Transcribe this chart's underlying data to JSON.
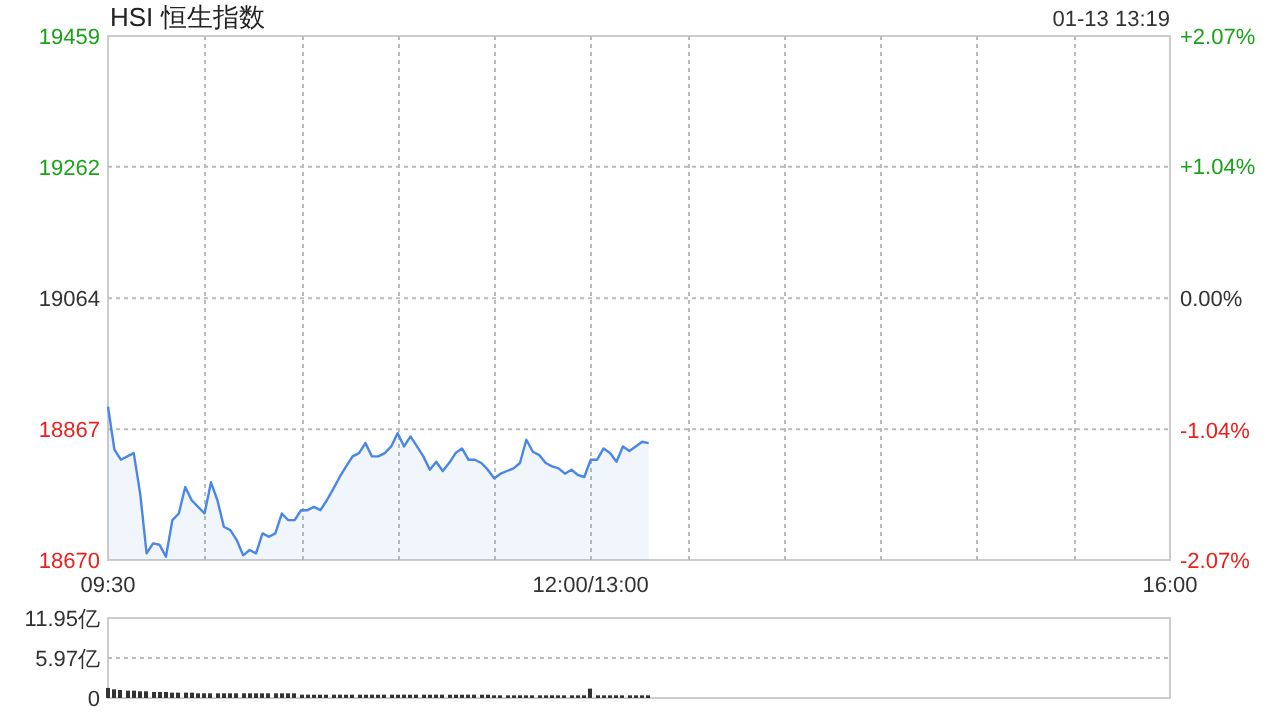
{
  "chart_data": [
    {
      "type": "area",
      "title": "HSI 恒生指数",
      "subtitle": "01-13 13:19",
      "color": "#4a86e8",
      "grid": true,
      "categories": [
        "09:30",
        null,
        null,
        null,
        null,
        null,
        null,
        null,
        null,
        null,
        null,
        null,
        null,
        null,
        null,
        null,
        null,
        null,
        null,
        null,
        null,
        null,
        null,
        null,
        null,
        null,
        null,
        null,
        null,
        null,
        null,
        null,
        null,
        null,
        null,
        null,
        null,
        null,
        null,
        null,
        null,
        null,
        null,
        null,
        null,
        null,
        null,
        null,
        null,
        null,
        null,
        null,
        null,
        null,
        null,
        null,
        null,
        null,
        null,
        null,
        null,
        null,
        null,
        null,
        null,
        null,
        null,
        null,
        null,
        null,
        null,
        null,
        null,
        null,
        null,
        "12:00/13:00",
        null,
        null,
        null,
        null,
        null,
        null,
        null,
        null,
        null,
        null,
        null,
        null,
        null,
        null,
        null,
        null,
        null,
        null,
        null,
        null,
        null,
        null,
        null,
        null,
        null,
        null,
        null,
        null,
        null,
        null,
        null,
        null,
        null,
        null,
        null,
        null,
        null,
        null,
        null,
        null,
        null,
        null,
        null,
        null,
        null,
        null,
        null,
        null,
        null,
        null,
        null,
        null,
        null,
        null,
        null,
        null,
        null,
        null,
        null,
        null,
        null,
        null,
        null,
        null,
        null,
        null,
        null,
        null,
        null,
        null,
        null,
        null,
        null,
        null,
        null,
        null,
        null,
        null,
        null,
        null,
        null,
        null,
        null,
        null,
        null,
        null,
        null,
        null,
        null,
        "16:00"
      ],
      "values": [
        18901,
        18836,
        18821,
        18826,
        18831,
        18770,
        18680,
        18695,
        18693,
        18675,
        18730,
        18740,
        18780,
        18760,
        18750,
        18740,
        18787,
        18760,
        18720,
        18715,
        18700,
        18677,
        18685,
        18680,
        18710,
        18705,
        18710,
        18740,
        18730,
        18730,
        18745,
        18745,
        18750,
        18745,
        18760,
        18777,
        18795,
        18811,
        18826,
        18831,
        18846,
        18826,
        18826,
        18831,
        18841,
        18861,
        18841,
        18856,
        18841,
        18826,
        18806,
        18818,
        18804,
        18816,
        18831,
        18838,
        18821,
        18821,
        18816,
        18806,
        18793,
        18800,
        18804,
        18808,
        18816,
        18851,
        18833,
        18828,
        18816,
        18811,
        18808,
        18800,
        18806,
        18798,
        18795,
        18821,
        18821,
        18838,
        18831,
        18818,
        18841,
        18834,
        18841,
        18848,
        18846,
        null,
        null,
        null,
        null,
        null,
        null,
        null,
        null,
        null,
        null,
        null,
        null,
        null,
        null,
        null,
        null,
        null,
        null,
        null,
        null,
        null,
        null,
        null,
        null,
        null,
        null,
        null,
        null,
        null,
        null,
        null,
        null,
        null,
        null,
        null,
        null,
        null,
        null,
        null,
        null,
        null,
        null,
        null,
        null,
        null,
        null,
        null,
        null,
        null,
        null,
        null,
        null,
        null,
        null,
        null,
        null,
        null,
        null,
        null,
        null,
        null,
        null,
        null,
        null,
        null,
        null,
        null,
        null,
        null,
        null,
        null,
        null,
        null,
        null,
        null,
        null,
        null,
        null,
        null,
        null,
        null
      ],
      "ylim": [
        18670,
        19459
      ],
      "yticks": [
        18670,
        18867,
        19064,
        19262,
        19459
      ],
      "y2lim": [
        -2.07,
        2.07
      ],
      "y2ticks": [
        {
          "value": -2.07,
          "label": "-2.07%"
        },
        {
          "value": -1.04,
          "label": "-1.04%"
        },
        {
          "value": 0,
          "label": "0.00%"
        },
        {
          "value": 1.04,
          "label": "+1.04%"
        },
        {
          "value": 2.07,
          "label": "+2.07%"
        }
      ]
    },
    {
      "type": "bar",
      "color": "#333333",
      "grid": "y",
      "tick_labels": "y",
      "categories": [
        null,
        null,
        null,
        null,
        null,
        null,
        null,
        null,
        null,
        null,
        null,
        null,
        null,
        null,
        null,
        null,
        null,
        null,
        null,
        null,
        null,
        null,
        null,
        null,
        null,
        null,
        null,
        null,
        null,
        null,
        null,
        null,
        null,
        null,
        null,
        null,
        null,
        null,
        null,
        null,
        null,
        null,
        null,
        null,
        null,
        null,
        null,
        null,
        null,
        null,
        null,
        null,
        null,
        null,
        null,
        null,
        null,
        null,
        null,
        null,
        null,
        null,
        null,
        null,
        null,
        null,
        null,
        null,
        null,
        null,
        null,
        null,
        null,
        null,
        null,
        null,
        null,
        null,
        null,
        null,
        null,
        null,
        null,
        null,
        null,
        null,
        null,
        null,
        null,
        null,
        null,
        null,
        null,
        null,
        null,
        null,
        null,
        null,
        null,
        null,
        null,
        null,
        null,
        null,
        null,
        null,
        null,
        null,
        null,
        null,
        null,
        null,
        null,
        null,
        null,
        null,
        null,
        null,
        null,
        null,
        null,
        null,
        null,
        null,
        null,
        null,
        null,
        null,
        null,
        null,
        null,
        null,
        null,
        null,
        null,
        null,
        null,
        null,
        null,
        null,
        null,
        null,
        null,
        null,
        null,
        null,
        null,
        null,
        null,
        null,
        null,
        null,
        null,
        null,
        null,
        null,
        null,
        null,
        null,
        null,
        null,
        null,
        null,
        null,
        null,
        null
      ],
      "values": [
        1.5,
        1.3,
        1.2,
        1.1,
        1.1,
        1.0,
        1.0,
        0.9,
        0.9,
        0.9,
        0.8,
        0.8,
        0.8,
        0.8,
        0.7,
        0.7,
        0.7,
        0.7,
        0.7,
        0.7,
        0.7,
        0.7,
        0.7,
        0.7,
        0.7,
        0.7,
        0.7,
        0.7,
        0.7,
        0.7,
        0.5,
        0.5,
        0.5,
        0.5,
        0.5,
        0.5,
        0.5,
        0.5,
        0.5,
        0.5,
        0.5,
        0.5,
        0.5,
        0.5,
        0.5,
        0.5,
        0.5,
        0.5,
        0.5,
        0.5,
        0.5,
        0.5,
        0.5,
        0.5,
        0.5,
        0.5,
        0.5,
        0.5,
        0.5,
        0.5,
        0.4,
        0.4,
        0.4,
        0.4,
        0.4,
        0.4,
        0.4,
        0.4,
        0.4,
        0.4,
        0.4,
        0.4,
        0.4,
        0.4,
        0.4,
        1.4,
        0.4,
        0.4,
        0.4,
        0.4,
        0.4,
        0.4,
        0.4,
        0.4,
        0.4,
        null,
        null,
        null,
        null,
        null,
        null,
        null,
        null,
        null,
        null,
        null,
        null,
        null,
        null,
        null,
        null,
        null,
        null,
        null,
        null,
        null,
        null,
        null,
        null,
        null,
        null,
        null,
        null,
        null,
        null,
        null,
        null,
        null,
        null,
        null,
        null,
        null,
        null,
        null,
        null,
        null,
        null,
        null,
        null,
        null,
        null,
        null,
        null,
        null,
        null,
        null,
        null,
        null,
        null,
        null,
        null,
        null,
        null,
        null,
        null,
        null,
        null,
        null,
        null,
        null,
        null,
        null,
        null,
        null,
        null,
        null,
        null,
        null,
        null,
        null,
        null,
        null,
        null,
        null,
        null,
        null
      ],
      "ylim": [
        0,
        11.95
      ],
      "yticks": [
        0,
        {
          "value": 5.97,
          "label": "5.97亿"
        },
        {
          "value": 11.95,
          "label": "11.95亿"
        }
      ]
    }
  ]
}
